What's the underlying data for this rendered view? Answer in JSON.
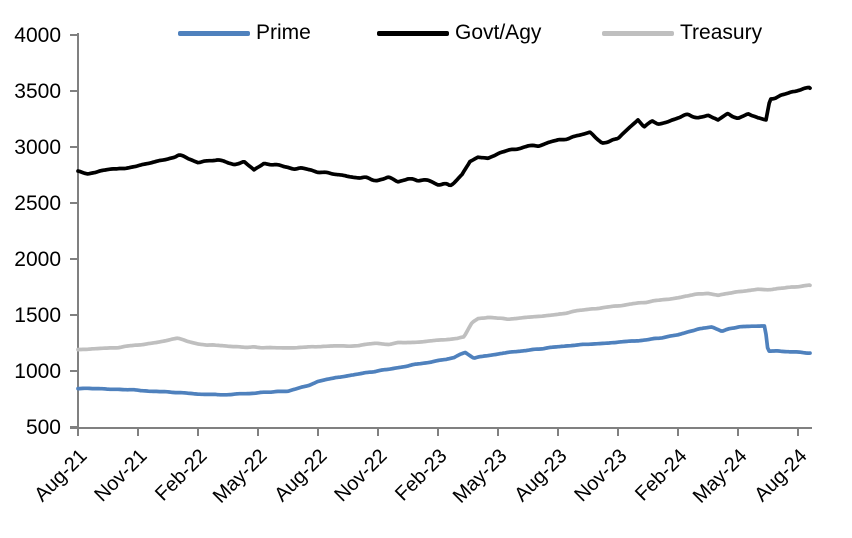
{
  "chart_data": {
    "type": "line",
    "title": "",
    "xlabel": "",
    "ylabel": "",
    "x_unit": "months since Aug-2021",
    "x_tick_labels": [
      "Aug-21",
      "Nov-21",
      "Feb-22",
      "May-22",
      "Aug-22",
      "Nov-22",
      "Feb-23",
      "May-23",
      "Aug-23",
      "Nov-23",
      "Feb-24",
      "May-24",
      "Aug-24"
    ],
    "x_tick_positions": [
      0,
      3,
      6,
      9,
      12,
      15,
      18,
      21,
      24,
      27,
      30,
      33,
      36
    ],
    "y_ticks": [
      500,
      1000,
      1500,
      2000,
      2500,
      3000,
      3500,
      4000
    ],
    "ylim": [
      500,
      4000
    ],
    "grid": false,
    "legend_position": "top",
    "axis_color": "#808080",
    "text_color": "#000000",
    "series": [
      {
        "name": "Prime",
        "color": "#4F81BD",
        "noise_amplitude": 3.5,
        "x": [
          0,
          1,
          2,
          3,
          4,
          5,
          6,
          7,
          7.5,
          8.5,
          9.5,
          10.5,
          11,
          11.5,
          12,
          13,
          14,
          15,
          16,
          17,
          18,
          18.8,
          19.1,
          19.35,
          19.8,
          20.3,
          21,
          22,
          23,
          24,
          25,
          26,
          27,
          28,
          29,
          30,
          31,
          31.7,
          32.2,
          32.6,
          33,
          34,
          34.35,
          34.5,
          35,
          35.6,
          36,
          36.6
        ],
        "y": [
          845,
          842,
          835,
          828,
          818,
          806,
          796,
          791,
          790,
          800,
          813,
          822,
          845,
          868,
          905,
          945,
          975,
          1002,
          1032,
          1062,
          1092,
          1118,
          1150,
          1168,
          1112,
          1135,
          1152,
          1175,
          1196,
          1216,
          1232,
          1246,
          1257,
          1272,
          1292,
          1322,
          1375,
          1392,
          1352,
          1380,
          1392,
          1400,
          1401,
          1176,
          1180,
          1172,
          1170,
          1160
        ]
      },
      {
        "name": "Govt/Agy",
        "color": "#000000",
        "noise_amplitude": 13,
        "x": [
          0,
          0.5,
          1,
          2,
          3,
          4,
          5,
          5.6,
          6,
          7,
          7.8,
          8.3,
          8.8,
          9.3,
          10,
          11,
          12,
          13,
          14,
          15,
          15.5,
          16,
          16.5,
          17,
          17.5,
          18,
          18.6,
          19.2,
          19.6,
          20,
          20.5,
          21,
          22,
          22.5,
          23,
          23.5,
          24,
          24.5,
          25,
          25.6,
          26.2,
          26.6,
          27,
          27.5,
          28,
          28.3,
          28.7,
          29,
          29.5,
          30,
          30.5,
          31,
          31.5,
          32,
          32.5,
          33,
          33.5,
          34,
          34.4,
          34.6,
          35,
          35.5,
          36,
          36.6
        ],
        "y": [
          2780,
          2762,
          2775,
          2800,
          2835,
          2880,
          2928,
          2890,
          2868,
          2885,
          2850,
          2875,
          2790,
          2855,
          2830,
          2810,
          2780,
          2755,
          2730,
          2705,
          2722,
          2695,
          2720,
          2685,
          2705,
          2672,
          2653,
          2760,
          2880,
          2915,
          2902,
          2940,
          2985,
          3012,
          3000,
          3035,
          3060,
          3075,
          3100,
          3130,
          3045,
          3055,
          3070,
          3160,
          3245,
          3180,
          3240,
          3210,
          3230,
          3270,
          3292,
          3270,
          3282,
          3230,
          3290,
          3262,
          3300,
          3252,
          3245,
          3435,
          3450,
          3470,
          3500,
          3525
        ]
      },
      {
        "name": "Treasury",
        "color": "#BFBFBF",
        "noise_amplitude": 4.5,
        "x": [
          0,
          1,
          2,
          3,
          4,
          5,
          5.5,
          6,
          7,
          8,
          9,
          10,
          11,
          12,
          13,
          14,
          15,
          15.5,
          16,
          17,
          18,
          19,
          19.3,
          19.7,
          20,
          20.5,
          21,
          21.5,
          22,
          23,
          24,
          25,
          26,
          27,
          28,
          29,
          30,
          30.5,
          31,
          31.5,
          32,
          32.5,
          33,
          34,
          34.5,
          35,
          36,
          36.6
        ],
        "y": [
          1195,
          1200,
          1210,
          1230,
          1255,
          1292,
          1265,
          1242,
          1226,
          1216,
          1210,
          1206,
          1210,
          1216,
          1221,
          1227,
          1246,
          1238,
          1250,
          1261,
          1275,
          1292,
          1302,
          1428,
          1465,
          1480,
          1470,
          1463,
          1475,
          1490,
          1506,
          1540,
          1560,
          1580,
          1605,
          1630,
          1656,
          1670,
          1690,
          1695,
          1676,
          1690,
          1710,
          1730,
          1724,
          1740,
          1756,
          1765
        ]
      }
    ]
  }
}
